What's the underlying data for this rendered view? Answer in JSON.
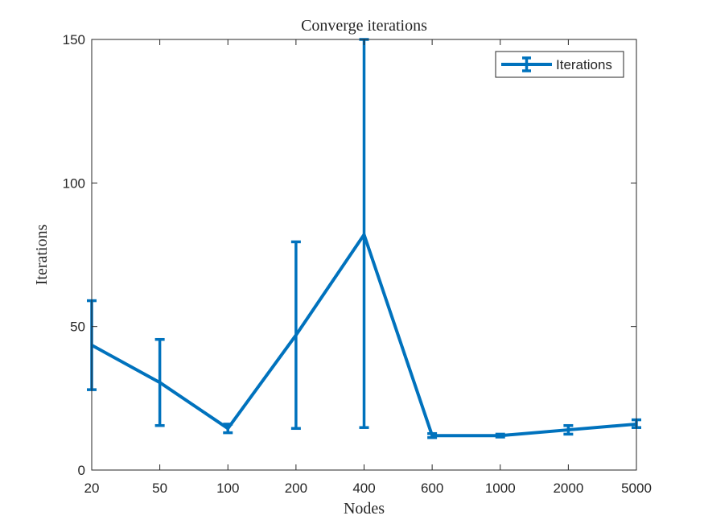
{
  "chart_data": {
    "type": "line",
    "title": "Converge iterations",
    "xlabel": "Nodes",
    "ylabel": "Iterations",
    "categories": [
      "20",
      "50",
      "100",
      "200",
      "400",
      "600",
      "1000",
      "2000",
      "5000"
    ],
    "ylim": [
      0,
      150
    ],
    "yticks": [
      "0",
      "50",
      "100",
      "150"
    ],
    "grid": false,
    "legend_position": "top-right",
    "line_color": "#0072BD",
    "series": [
      {
        "name": "Iterations",
        "values": [
          43.5,
          30.5,
          14.5,
          47,
          82,
          12,
          12,
          14,
          16
        ],
        "err_low": [
          28,
          15.5,
          13,
          14.5,
          14.8,
          11.3,
          11.5,
          12.5,
          14.8
        ],
        "err_high": [
          59,
          45.5,
          16,
          79.5,
          150,
          12.7,
          12.5,
          15.5,
          17.5
        ]
      }
    ]
  }
}
